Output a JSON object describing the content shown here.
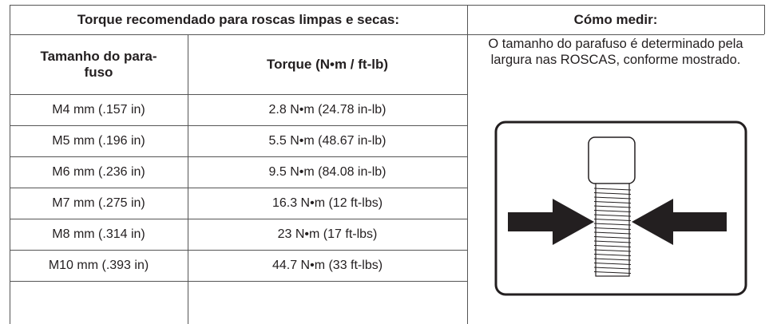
{
  "header": {
    "title_left": "Torque recomendado para roscas limpas e secas:",
    "title_right": "Cómo medir:"
  },
  "table": {
    "columns": [
      "Tamanho do para-fuso",
      "Torque (N•m / ft-lb)"
    ],
    "rows": [
      [
        "M4 mm (.157 in)",
        "2.8 N•m (24.78 in-lb)"
      ],
      [
        "M5 mm (.196 in)",
        "5.5 N•m (48.67 in-lb)"
      ],
      [
        "M6 mm (.236 in)",
        "9.5 N•m (84.08 in-lb)"
      ],
      [
        "M7 mm (.275 in)",
        "16.3 N•m (12 ft-lbs)"
      ],
      [
        "M8 mm (.314 in)",
        "23 N•m (17 ft-lbs)"
      ],
      [
        "M10 mm (.393 in)",
        "44.7 N•m (33 ft-lbs)"
      ]
    ]
  },
  "how_to": {
    "text": "O tamanho do parafuso é determinado pela largura nas ROSCAS, conforme mostrado."
  }
}
